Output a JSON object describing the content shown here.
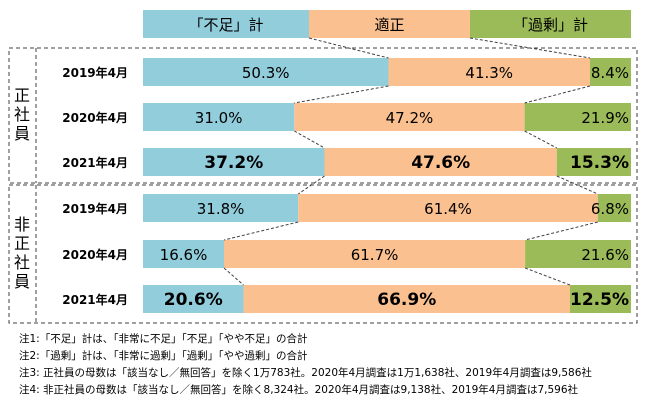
{
  "chart_data": {
    "type": "bar",
    "stacked": "percent",
    "legend": [
      "「不足」計",
      "適正",
      "「過剰」計"
    ],
    "colors": {
      "shortage": "#92cddc",
      "appropriate": "#fac090",
      "surplus": "#9bbb59"
    },
    "groups": [
      {
        "label": "正社員",
        "rows": [
          {
            "label": "2019年4月",
            "values": [
              50.3,
              41.3,
              8.4
            ]
          },
          {
            "label": "2020年4月",
            "values": [
              31.0,
              47.2,
              21.9
            ]
          },
          {
            "label": "2021年4月",
            "values": [
              37.2,
              47.6,
              15.3
            ]
          }
        ]
      },
      {
        "label": "非正社員",
        "rows": [
          {
            "label": "2019年4月",
            "values": [
              31.8,
              61.4,
              6.8
            ]
          },
          {
            "label": "2020年4月",
            "values": [
              16.6,
              61.7,
              21.6
            ]
          },
          {
            "label": "2021年4月",
            "values": [
              20.6,
              66.9,
              12.5
            ]
          }
        ]
      }
    ],
    "value_labels": [
      [
        "50.3%",
        "41.3%",
        "8.4%"
      ],
      [
        "31.0%",
        "47.2%",
        "21.9%"
      ],
      [
        "37.2%",
        "47.6%",
        "15.3%"
      ],
      [
        "31.8%",
        "61.4%",
        "6.8%"
      ],
      [
        "16.6%",
        "61.7%",
        "21.6%"
      ],
      [
        "20.6%",
        "66.9%",
        "12.5%"
      ]
    ],
    "highlight_rows": [
      "正社員 2021年4月",
      "非正社員 2021年4月"
    ]
  },
  "notes": [
    "注1:「不足」計は、「非常に不足」「不足」「やや不足」の合計",
    "注2:「過剰」計は、「非常に過剰」「過剰」「やや過剰」の合計",
    "注3: 正社員の母数は「該当なし／無回答」を除く1万783社。2020年4月調査は1万1,638社、2019年4月調査は9,586社",
    "注4: 非正社員の母数は「該当なし／無回答」を除く8,324社。2020年4月調査は9,138社、2019年4月調査は7,596社"
  ]
}
